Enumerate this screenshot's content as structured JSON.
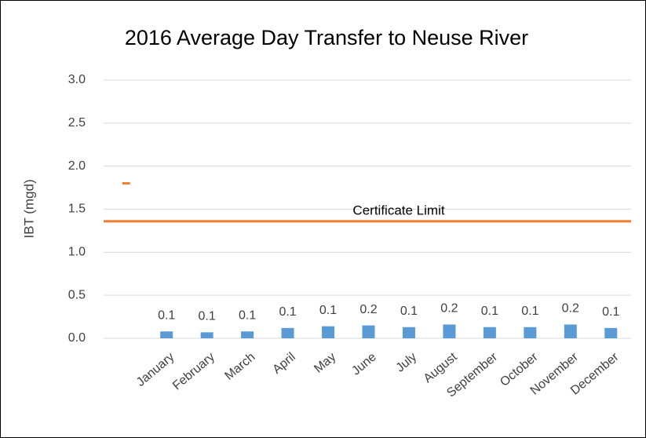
{
  "chart_data": {
    "type": "bar",
    "title": "2016 Average Day Transfer to Neuse River",
    "y_label": "IBT (mgd)",
    "categories": [
      null,
      "January",
      "February",
      "March",
      "April",
      "May",
      "June",
      "July",
      "August",
      "September",
      "October",
      "November",
      "December"
    ],
    "series": [
      {
        "type": "bar",
        "color": "#5b9bd5",
        "values": [
          null,
          0.08,
          0.07,
          0.08,
          0.12,
          0.14,
          0.15,
          0.13,
          0.16,
          0.13,
          0.13,
          0.16,
          0.12
        ],
        "value_labels": [
          null,
          "0.1",
          "0.1",
          "0.1",
          "0.1",
          "0.1",
          "0.2",
          "0.1",
          "0.2",
          "0.1",
          "0.1",
          "0.2",
          "0.1"
        ]
      },
      {
        "type": "marker",
        "color": "#ed7d31",
        "values": [
          1.8,
          null,
          null,
          null,
          null,
          null,
          null,
          null,
          null,
          null,
          null,
          null,
          null
        ]
      }
    ],
    "reference_line": {
      "value": 1.36,
      "label": "Certificate Limit",
      "color": "#ed7d31"
    },
    "ylim": [
      0,
      3
    ],
    "yticks": [
      {
        "value": 0,
        "label": "0.0"
      },
      0.5,
      {
        "value": 1,
        "label": "1.0"
      },
      1.5,
      {
        "value": 2,
        "label": "2.0"
      },
      2.5,
      {
        "value": 3,
        "label": "3.0"
      }
    ],
    "grid": true
  }
}
